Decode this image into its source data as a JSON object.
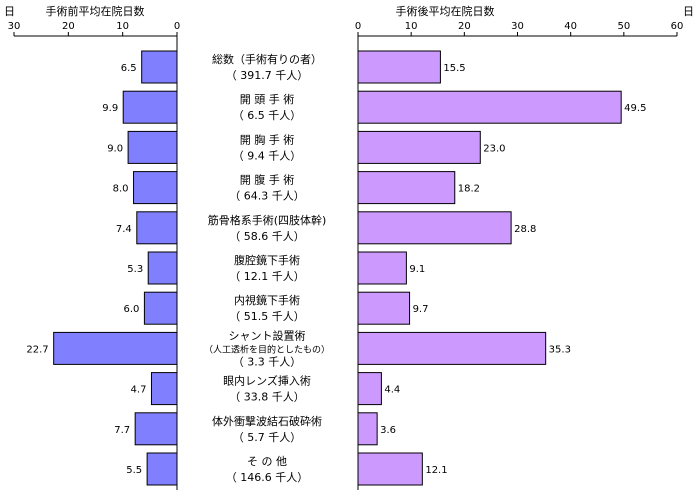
{
  "chart_data": {
    "type": "bar",
    "orientation": "horizontal-butterfly",
    "unit_label": "日",
    "categories": [
      {
        "lines": [
          "総数（手術有りの者）",
          "（ 391.7 千人）"
        ]
      },
      {
        "lines": [
          "開 頭 手 術",
          "（ 6.5 千人）"
        ]
      },
      {
        "lines": [
          "開 胸 手 術",
          "（ 9.4 千人）"
        ]
      },
      {
        "lines": [
          "開 腹 手 術",
          "（ 64.3 千人）"
        ]
      },
      {
        "lines": [
          "筋骨格系手術(四肢体幹)",
          "（ 58.6 千人）"
        ]
      },
      {
        "lines": [
          "腹腔鏡下手術",
          "（ 12.1 千人）"
        ]
      },
      {
        "lines": [
          "内視鏡下手術",
          "（ 51.5 千人）"
        ]
      },
      {
        "lines": [
          "シャント設置術",
          "（人工透析を目的としたもの）",
          "（ 3.3 千人）"
        ]
      },
      {
        "lines": [
          "眼内レンズ挿入術",
          "（ 33.8 千人）"
        ]
      },
      {
        "lines": [
          "体外衝撃波結石破砕術",
          "（ 5.7 千人）"
        ]
      },
      {
        "lines": [
          "そ の 他",
          "（ 146.6 千人）"
        ]
      }
    ],
    "left": {
      "title": "手術前平均在院日数",
      "xlim": [
        0,
        30
      ],
      "ticks": [
        0,
        10,
        20,
        30
      ],
      "values": [
        6.5,
        9.9,
        9.0,
        8.0,
        7.4,
        5.3,
        6.0,
        22.7,
        4.7,
        7.7,
        5.5
      ],
      "labels": [
        "6.5",
        "9.9",
        "9.0",
        "8.0",
        "7.4",
        "5.3",
        "6.0",
        "22.7",
        "4.7",
        "7.7",
        "5.5"
      ],
      "color": "#8080ff"
    },
    "right": {
      "title": "手術後平均在院日数",
      "xlim": [
        0,
        60
      ],
      "ticks": [
        0,
        10,
        20,
        30,
        40,
        50,
        60
      ],
      "values": [
        15.5,
        49.5,
        23.0,
        18.2,
        28.8,
        9.1,
        9.7,
        35.3,
        4.4,
        3.6,
        12.1
      ],
      "labels": [
        "15.5",
        "49.5",
        "23.0",
        "18.2",
        "28.8",
        "9.1",
        "9.7",
        "35.3",
        "4.4",
        "3.6",
        "12.1"
      ],
      "color": "#cc99ff"
    },
    "grid": false
  }
}
